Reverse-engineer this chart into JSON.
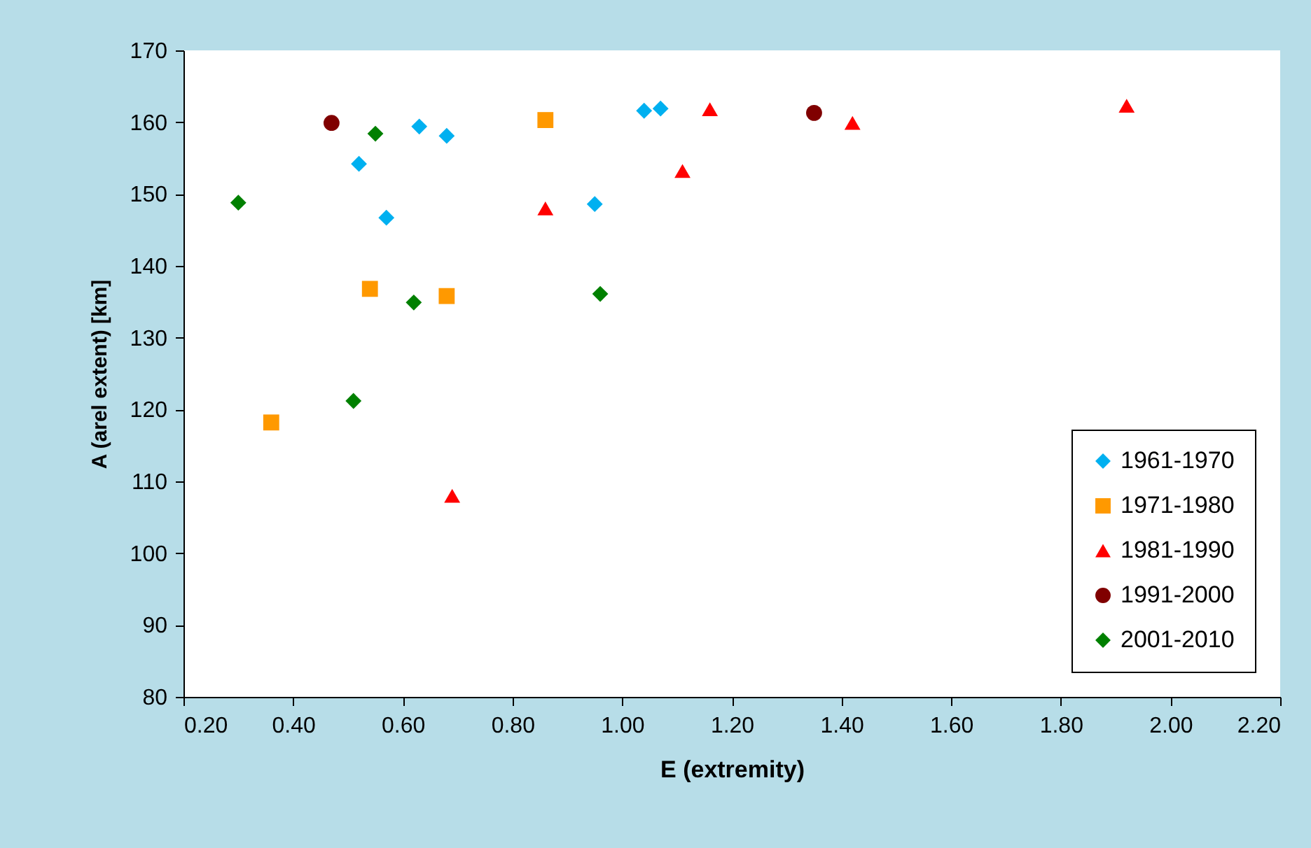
{
  "chart_data": {
    "type": "scatter",
    "xlabel": "E (extremity)",
    "ylabel": "A (arel extent) [km]",
    "xlim": [
      0.2,
      2.2
    ],
    "xticks": [
      {
        "value": 0.2,
        "label": "0.20"
      },
      {
        "value": 0.4,
        "label": "0.40"
      },
      {
        "value": 0.6,
        "label": "0.60"
      },
      {
        "value": 0.8,
        "label": "0.80"
      },
      {
        "value": 1.0,
        "label": "1.00"
      },
      {
        "value": 1.2,
        "label": "1.20"
      },
      {
        "value": 1.4,
        "label": "1.40"
      },
      {
        "value": 1.6,
        "label": "1.60"
      },
      {
        "value": 1.8,
        "label": "1.80"
      },
      {
        "value": 2.0,
        "label": "2.00"
      },
      {
        "value": 2.2,
        "label": "2.20"
      }
    ],
    "ylim": [
      80,
      170
    ],
    "yticks": [
      80,
      90,
      100,
      110,
      120,
      130,
      140,
      150,
      160,
      170
    ],
    "grid": false,
    "legend": "bottom right",
    "series": [
      {
        "name": "1961-1970",
        "color": "#00b0f0",
        "marker": "diamond",
        "x": [
          0.52,
          0.63,
          0.68,
          0.57,
          0.95,
          1.04,
          1.07
        ],
        "values": [
          154.2,
          159.4,
          158.1,
          146.7,
          148.6,
          161.6,
          161.9
        ]
      },
      {
        "name": "1971-1980",
        "color": "#ff9900",
        "marker": "square",
        "x": [
          0.86,
          0.54,
          0.68,
          0.36
        ],
        "values": [
          160.3,
          136.8,
          135.8,
          118.2
        ]
      },
      {
        "name": "1981-1990",
        "color": "#ff0000",
        "marker": "triangle",
        "x": [
          1.16,
          1.11,
          0.86,
          0.69,
          1.42,
          1.92
        ],
        "values": [
          161.8,
          153.2,
          148.0,
          108.0,
          159.9,
          162.3
        ]
      },
      {
        "name": "1991-2000",
        "color": "#800000",
        "marker": "circle",
        "x": [
          0.47,
          1.35
        ],
        "values": [
          159.9,
          161.3
        ]
      },
      {
        "name": "2001-2010",
        "color": "#008000",
        "marker": "diamond",
        "x": [
          0.3,
          0.55,
          0.62,
          0.96,
          0.51
        ],
        "values": [
          148.8,
          158.4,
          134.9,
          136.1,
          121.2
        ]
      }
    ]
  }
}
